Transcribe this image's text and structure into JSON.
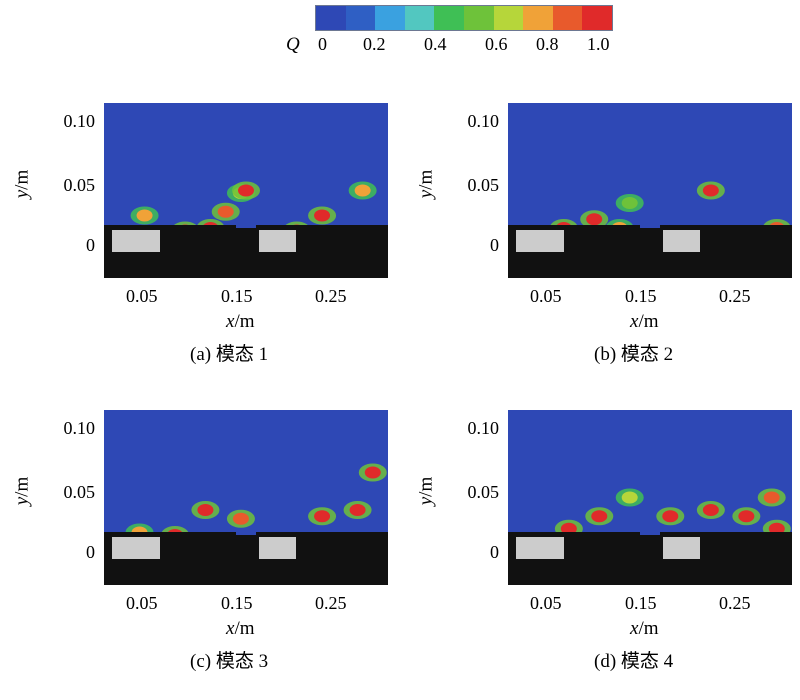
{
  "colorbar": {
    "symbol": "Q",
    "tick_labels": [
      "0",
      "0.2",
      "0.4",
      "0.6",
      "0.8",
      "1.0"
    ],
    "colors": [
      "#2e48b5",
      "#2f5fc4",
      "#3aa1e0",
      "#52c7c0",
      "#3fbf55",
      "#6ec23a",
      "#b6d63a",
      "#f0a238",
      "#e85a2c",
      "#e02a2a"
    ]
  },
  "axes": {
    "y_var": "y",
    "y_unit": "/m",
    "x_var": "x",
    "x_unit": "/m",
    "y_ticks": [
      "0.10",
      "0.05",
      "0"
    ],
    "x_ticks": [
      "0.05",
      "0.15",
      "0.25"
    ]
  },
  "panels": [
    {
      "caption": "(a) 模态 1"
    },
    {
      "caption": "(b) 模态 2"
    },
    {
      "caption": "(c) 模态 3"
    },
    {
      "caption": "(d) 模态 4"
    }
  ],
  "chart_data": [
    {
      "type": "heatmap",
      "title": "",
      "caption": "(a) 模态 1",
      "xlabel": "x/m",
      "ylabel": "y/m",
      "colorbar_label": "Q",
      "colorbar_range": [
        0,
        1.0
      ],
      "x_ticks": [
        0.05,
        0.15,
        0.25
      ],
      "y_ticks": [
        0,
        0.05,
        0.1
      ],
      "high_q_regions": [
        {
          "x": 0.04,
          "y": 0.03,
          "q": 0.8
        },
        {
          "x": 0.08,
          "y": 0.018,
          "q": 1.0
        },
        {
          "x": 0.105,
          "y": 0.02,
          "q": 1.0
        },
        {
          "x": 0.135,
          "y": 0.048,
          "q": 0.7
        },
        {
          "x": 0.14,
          "y": 0.05,
          "q": 1.0
        },
        {
          "x": 0.12,
          "y": 0.033,
          "q": 0.9
        },
        {
          "x": 0.19,
          "y": 0.018,
          "q": 1.0
        },
        {
          "x": 0.215,
          "y": 0.03,
          "q": 1.0
        },
        {
          "x": 0.255,
          "y": 0.05,
          "q": 0.8
        }
      ]
    },
    {
      "type": "heatmap",
      "title": "",
      "caption": "(b) 模态 2",
      "xlabel": "x/m",
      "ylabel": "y/m",
      "colorbar_label": "Q",
      "colorbar_range": [
        0,
        1.0
      ],
      "x_ticks": [
        0.05,
        0.15,
        0.25
      ],
      "y_ticks": [
        0,
        0.05,
        0.1
      ],
      "high_q_regions": [
        {
          "x": 0.055,
          "y": 0.02,
          "q": 1.0
        },
        {
          "x": 0.085,
          "y": 0.027,
          "q": 1.0
        },
        {
          "x": 0.11,
          "y": 0.02,
          "q": 0.8
        },
        {
          "x": 0.12,
          "y": 0.04,
          "q": 0.6
        },
        {
          "x": 0.2,
          "y": 0.05,
          "q": 1.0
        },
        {
          "x": 0.21,
          "y": 0.015,
          "q": 1.0
        },
        {
          "x": 0.19,
          "y": 0.015,
          "q": 1.0
        },
        {
          "x": 0.265,
          "y": 0.02,
          "q": 0.9
        }
      ]
    },
    {
      "type": "heatmap",
      "title": "",
      "caption": "(c) 模态 3",
      "xlabel": "x/m",
      "ylabel": "y/m",
      "colorbar_label": "Q",
      "colorbar_range": [
        0,
        1.0
      ],
      "x_ticks": [
        0.05,
        0.15,
        0.25
      ],
      "y_ticks": [
        0,
        0.05,
        0.1
      ],
      "high_q_regions": [
        {
          "x": 0.035,
          "y": 0.022,
          "q": 0.8
        },
        {
          "x": 0.07,
          "y": 0.02,
          "q": 1.0
        },
        {
          "x": 0.1,
          "y": 0.04,
          "q": 1.0
        },
        {
          "x": 0.135,
          "y": 0.033,
          "q": 0.9
        },
        {
          "x": 0.18,
          "y": 0.01,
          "q": 1.0
        },
        {
          "x": 0.215,
          "y": 0.035,
          "q": 1.0
        },
        {
          "x": 0.25,
          "y": 0.04,
          "q": 1.0
        },
        {
          "x": 0.265,
          "y": 0.07,
          "q": 1.0
        }
      ]
    },
    {
      "type": "heatmap",
      "title": "",
      "caption": "(d) 模态 4",
      "xlabel": "x/m",
      "ylabel": "y/m",
      "colorbar_label": "Q",
      "colorbar_range": [
        0,
        1.0
      ],
      "x_ticks": [
        0.05,
        0.15,
        0.25
      ],
      "y_ticks": [
        0,
        0.05,
        0.1
      ],
      "high_q_regions": [
        {
          "x": 0.06,
          "y": 0.025,
          "q": 1.0
        },
        {
          "x": 0.09,
          "y": 0.035,
          "q": 1.0
        },
        {
          "x": 0.12,
          "y": 0.05,
          "q": 0.7
        },
        {
          "x": 0.16,
          "y": 0.035,
          "q": 1.0
        },
        {
          "x": 0.2,
          "y": 0.04,
          "q": 1.0
        },
        {
          "x": 0.235,
          "y": 0.035,
          "q": 1.0
        },
        {
          "x": 0.26,
          "y": 0.05,
          "q": 0.9
        },
        {
          "x": 0.265,
          "y": 0.025,
          "q": 1.0
        }
      ]
    }
  ]
}
